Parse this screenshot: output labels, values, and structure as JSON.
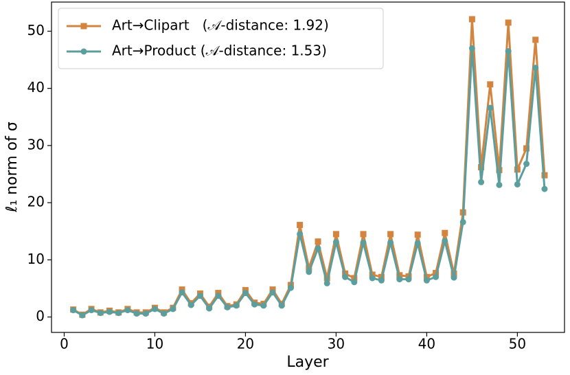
{
  "chart_data": {
    "type": "line",
    "xlabel": "Layer",
    "ylabel": "ℓ₁ norm of σ",
    "x": [
      1,
      2,
      3,
      4,
      5,
      6,
      7,
      8,
      9,
      10,
      11,
      12,
      13,
      14,
      15,
      16,
      17,
      18,
      19,
      20,
      21,
      22,
      23,
      24,
      25,
      26,
      27,
      28,
      29,
      30,
      31,
      32,
      33,
      34,
      35,
      36,
      37,
      38,
      39,
      40,
      41,
      42,
      43,
      44,
      45,
      46,
      47,
      48,
      49,
      50,
      51,
      52,
      53
    ],
    "series": [
      {
        "name": "Art→Clipart   (𝒜-distance: 1.92)",
        "color": "#d3843f",
        "marker": "square",
        "values": [
          1.3,
          0.4,
          1.4,
          0.8,
          1.1,
          0.8,
          1.4,
          0.8,
          0.8,
          1.6,
          0.8,
          1.6,
          4.8,
          2.4,
          4.1,
          1.8,
          4.2,
          1.9,
          2.2,
          4.7,
          2.5,
          2.3,
          4.8,
          2.3,
          5.6,
          16.1,
          8.6,
          13.2,
          6.8,
          14.5,
          7.6,
          6.8,
          14.5,
          7.4,
          7.0,
          14.5,
          7.3,
          7.1,
          14.4,
          7.0,
          7.7,
          14.7,
          7.6,
          18.3,
          52.1,
          26.2,
          40.7,
          25.7,
          51.5,
          25.8,
          29.5,
          48.5,
          24.8
        ]
      },
      {
        "name": "Art→Product (𝒜-distance: 1.53)",
        "color": "#5b9e9e",
        "marker": "circle",
        "values": [
          1.2,
          0.3,
          1.2,
          0.7,
          0.9,
          0.7,
          1.2,
          0.6,
          0.6,
          1.4,
          0.6,
          1.4,
          4.3,
          2.1,
          3.7,
          1.5,
          3.7,
          1.7,
          2.0,
          4.2,
          2.2,
          2.0,
          4.3,
          2.0,
          5.1,
          14.5,
          7.9,
          12.0,
          5.9,
          13.1,
          7.0,
          6.1,
          13.0,
          6.8,
          6.4,
          13.0,
          6.6,
          6.6,
          12.9,
          6.4,
          7.0,
          13.3,
          6.9,
          16.6,
          47.0,
          23.6,
          36.6,
          23.1,
          46.5,
          23.2,
          26.8,
          43.6,
          22.4
        ]
      }
    ],
    "xlim": [
      -1.4,
      55.2
    ],
    "xticks": [
      0,
      10,
      20,
      30,
      40,
      50
    ],
    "ylim": [
      -2.7,
      55.1
    ],
    "yticks": [
      0,
      10,
      20,
      30,
      40,
      50
    ],
    "grid": false,
    "legend": "upper left"
  }
}
